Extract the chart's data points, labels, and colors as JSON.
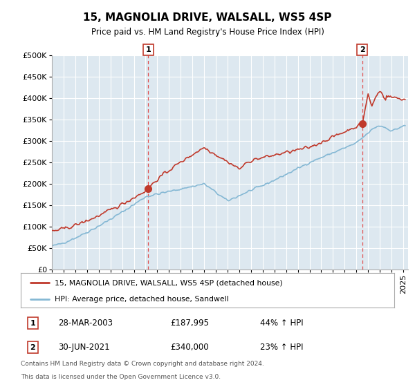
{
  "title": "15, MAGNOLIA DRIVE, WALSALL, WS5 4SP",
  "subtitle": "Price paid vs. HM Land Registry's House Price Index (HPI)",
  "legend_line1": "15, MAGNOLIA DRIVE, WALSALL, WS5 4SP (detached house)",
  "legend_line2": "HPI: Average price, detached house, Sandwell",
  "transaction1_date_str": "28-MAR-2003",
  "transaction1_price_str": "£187,995",
  "transaction1_hpi_str": "44% ↑ HPI",
  "transaction1_price_val": 187995,
  "transaction2_date_str": "30-JUN-2021",
  "transaction2_price_str": "£340,000",
  "transaction2_hpi_str": "23% ↑ HPI",
  "transaction2_price_val": 340000,
  "footnote_line1": "Contains HM Land Registry data © Crown copyright and database right 2024.",
  "footnote_line2": "This data is licensed under the Open Government Licence v3.0.",
  "price_color": "#c0392b",
  "hpi_color": "#85b8d4",
  "vline_color": "#e05050",
  "marker_color": "#c0392b",
  "ylim": [
    0,
    500000
  ],
  "yticks": [
    0,
    50000,
    100000,
    150000,
    200000,
    250000,
    300000,
    350000,
    400000,
    450000,
    500000
  ],
  "plot_bg_color": "#dde8f0",
  "xstart_year": 1995,
  "xend_year": 2025
}
